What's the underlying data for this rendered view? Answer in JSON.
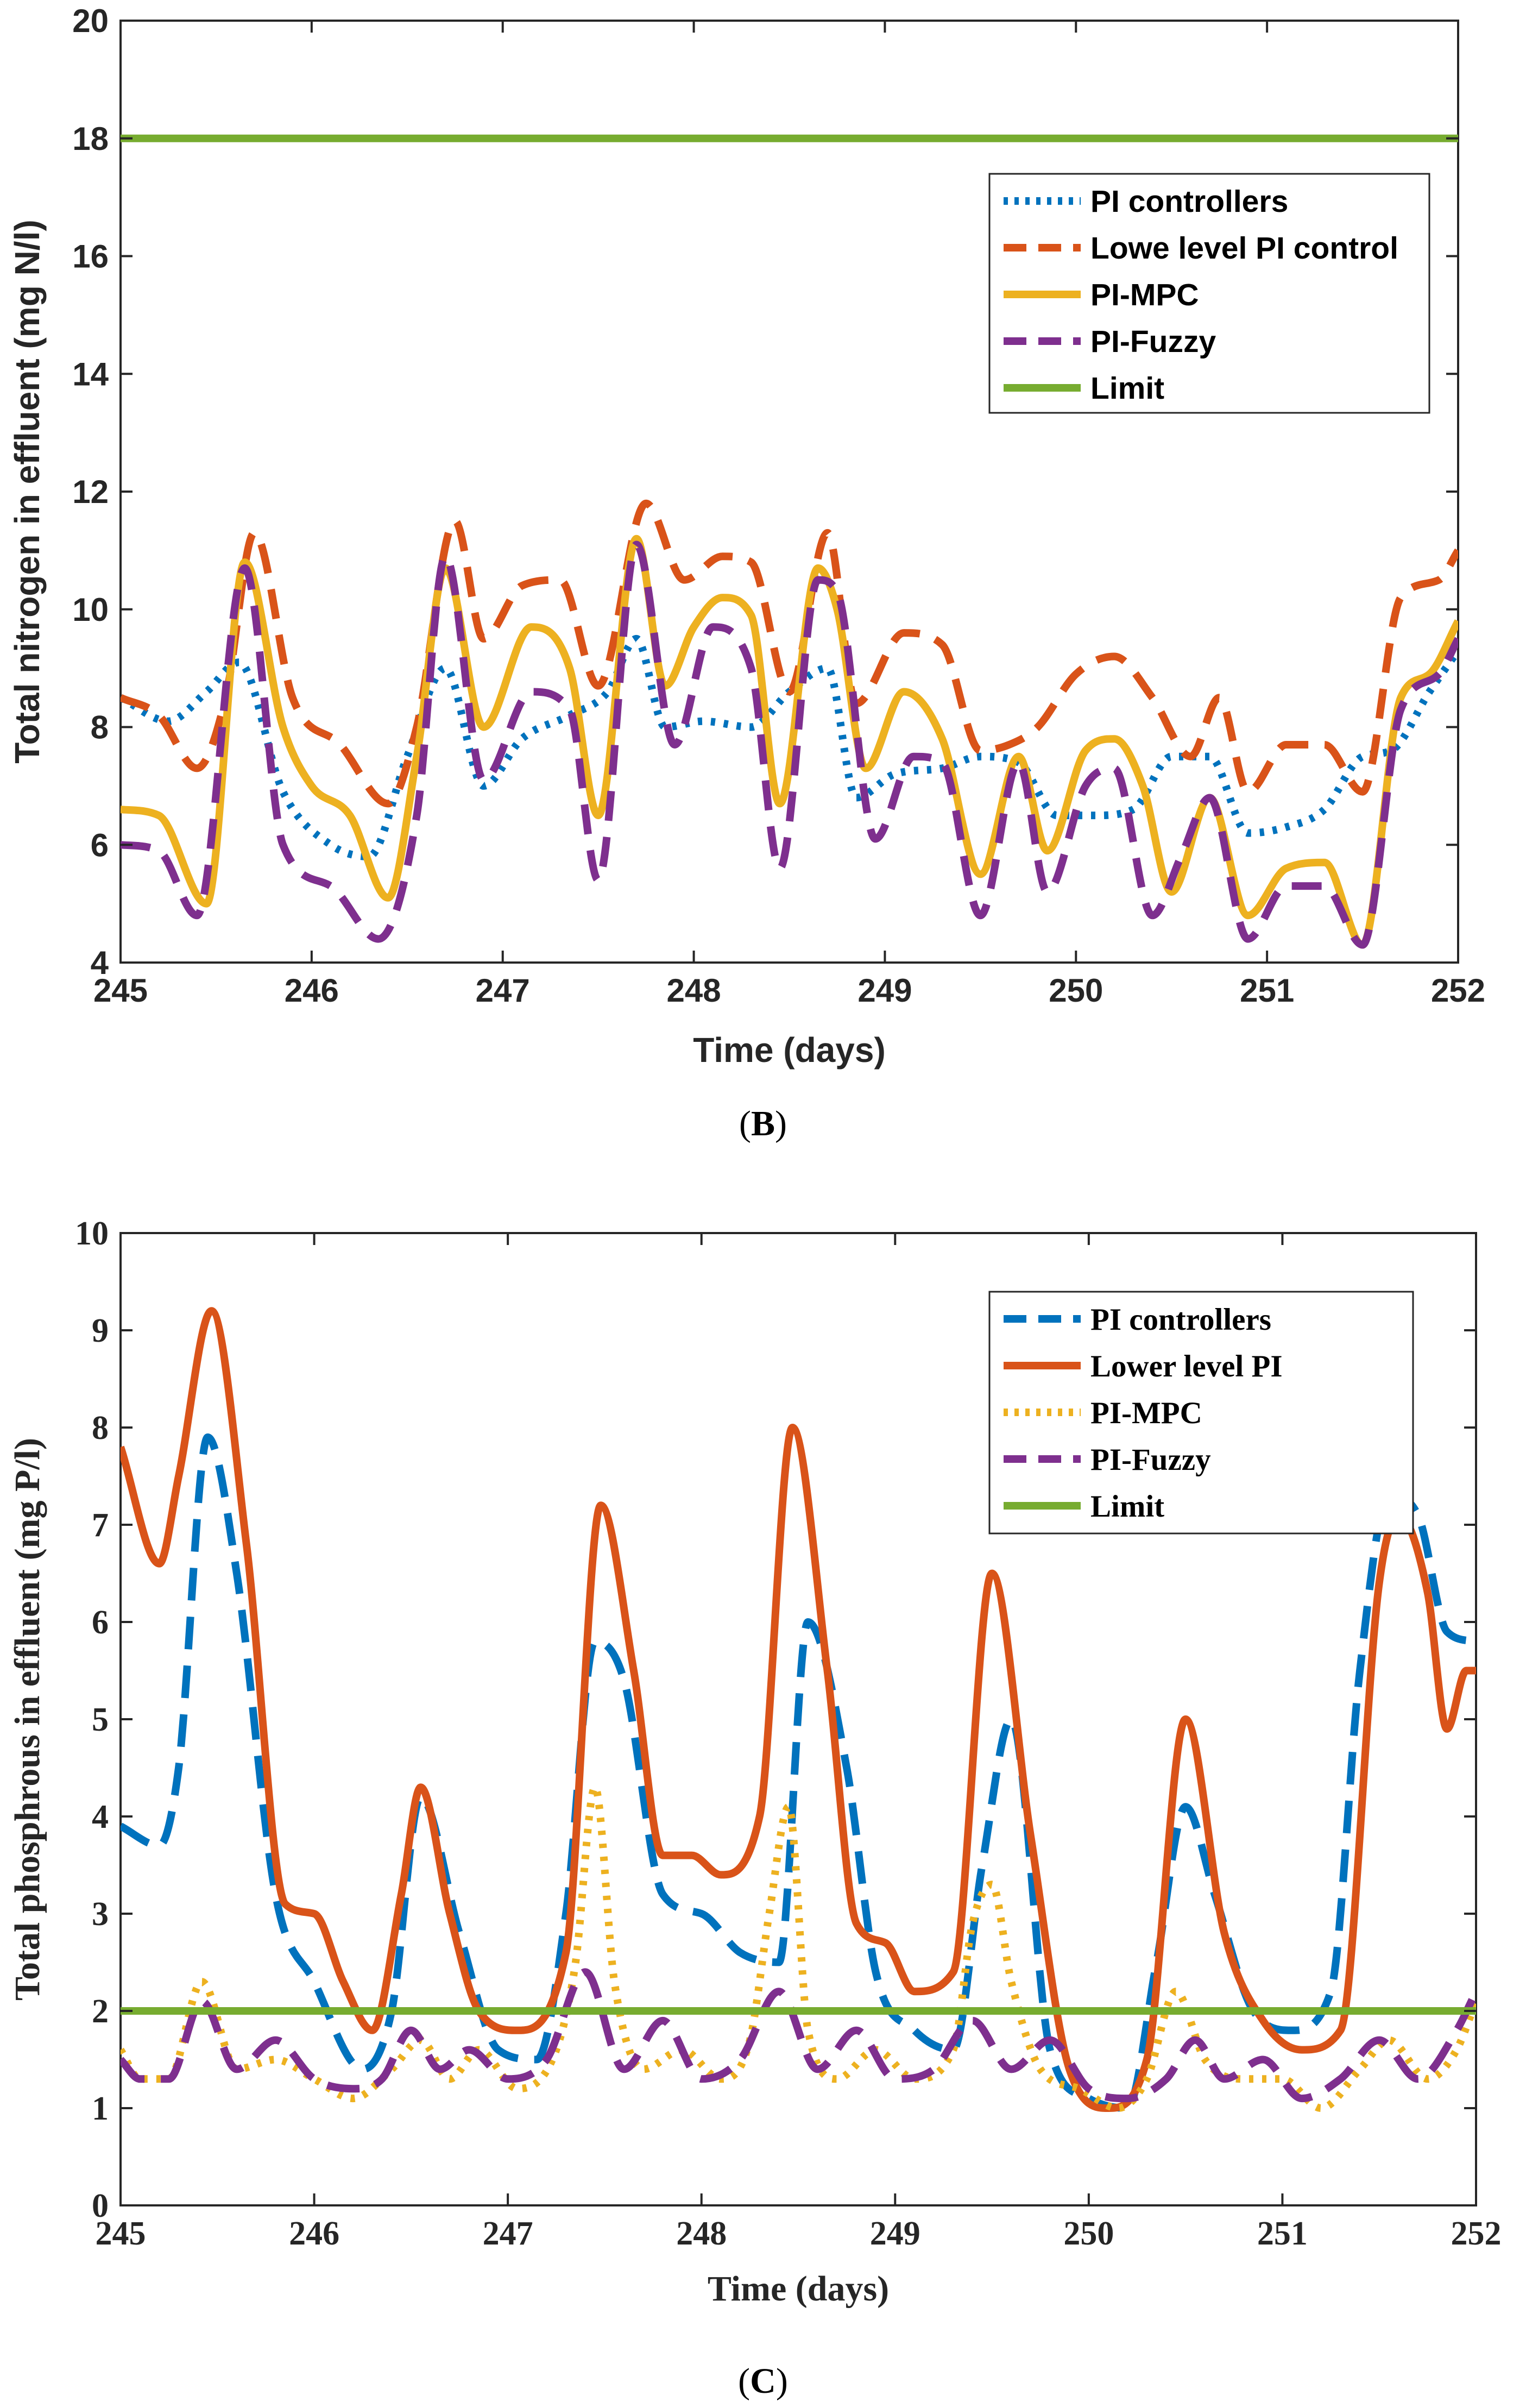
{
  "colors": {
    "blue": "#0072BD",
    "orange": "#D95319",
    "yellow": "#EDB120",
    "purple": "#7E2F8E",
    "green": "#77AC30"
  },
  "chart_data": [
    {
      "panel_label": "B",
      "type": "line",
      "xlabel": "Time (days)",
      "ylabel": "Total nitrogen in effluent (mg N/l)",
      "xlim": [
        245,
        252
      ],
      "ylim": [
        4,
        20
      ],
      "xticks": [
        245,
        246,
        247,
        248,
        249,
        250,
        251,
        252
      ],
      "yticks": [
        4,
        6,
        8,
        10,
        12,
        14,
        16,
        18,
        20
      ],
      "legend_position": "top-right",
      "series": [
        {
          "name": "PI controllers",
          "color": "#0072BD",
          "style": "dotted",
          "x": [
            245.0,
            245.25,
            245.45,
            245.62,
            245.85,
            246.1,
            246.3,
            246.5,
            246.7,
            246.9,
            247.1,
            247.35,
            247.55,
            247.7,
            247.85,
            248.05,
            248.3,
            248.5,
            248.7,
            248.85,
            249.05,
            249.3,
            249.5,
            249.7,
            249.9,
            250.1,
            250.3,
            250.5,
            250.7,
            250.9,
            251.1,
            251.3,
            251.5,
            251.65,
            251.85,
            252.0
          ],
          "y": [
            8.5,
            8.1,
            8.6,
            9.1,
            6.9,
            6.0,
            5.8,
            7.5,
            9.0,
            7.0,
            7.8,
            8.2,
            8.6,
            9.5,
            8.0,
            8.1,
            8.0,
            8.6,
            9.0,
            6.8,
            7.2,
            7.3,
            7.5,
            7.4,
            6.5,
            6.5,
            6.6,
            7.5,
            7.5,
            6.2,
            6.3,
            6.6,
            7.5,
            7.6,
            8.6,
            9.3
          ]
        },
        {
          "name": "Lowe level PI control",
          "color": "#D95319",
          "style": "dashed",
          "x": [
            245.0,
            245.2,
            245.4,
            245.55,
            245.7,
            245.9,
            246.15,
            246.4,
            246.55,
            246.75,
            246.9,
            247.1,
            247.3,
            247.5,
            247.75,
            247.95,
            248.15,
            248.3,
            248.5,
            248.7,
            248.85,
            249.1,
            249.3,
            249.5,
            249.65,
            249.8,
            250.0,
            250.2,
            250.4,
            250.6,
            250.75,
            250.9,
            251.1,
            251.3,
            251.5,
            251.7,
            251.9,
            252.0
          ],
          "y": [
            8.5,
            8.2,
            7.3,
            8.5,
            11.3,
            8.5,
            7.7,
            6.7,
            8.0,
            11.5,
            9.5,
            10.4,
            10.5,
            8.7,
            11.8,
            10.5,
            10.9,
            10.8,
            8.6,
            11.3,
            8.4,
            9.6,
            9.4,
            7.6,
            7.7,
            8.0,
            8.9,
            9.2,
            8.5,
            7.5,
            8.5,
            6.9,
            7.7,
            7.7,
            6.9,
            10.2,
            10.5,
            11.0
          ]
        },
        {
          "name": "PI-MPC",
          "color": "#EDB120",
          "style": "solid",
          "x": [
            245.0,
            245.2,
            245.45,
            245.65,
            245.85,
            246.0,
            246.2,
            246.4,
            246.55,
            246.7,
            246.9,
            247.15,
            247.35,
            247.5,
            247.7,
            247.85,
            248.0,
            248.15,
            248.3,
            248.45,
            248.65,
            248.75,
            248.9,
            249.1,
            249.3,
            249.5,
            249.7,
            249.85,
            250.05,
            250.2,
            250.35,
            250.5,
            250.7,
            250.9,
            251.1,
            251.3,
            251.5,
            251.7,
            251.85,
            252.0
          ],
          "y": [
            6.6,
            6.5,
            5.0,
            10.8,
            8.0,
            7.0,
            6.5,
            5.1,
            7.5,
            10.7,
            8.0,
            9.7,
            9.0,
            6.5,
            11.2,
            8.7,
            9.7,
            10.2,
            9.9,
            6.7,
            10.7,
            10.0,
            7.3,
            8.6,
            7.8,
            5.5,
            7.5,
            5.9,
            7.6,
            7.8,
            7.0,
            5.2,
            6.8,
            4.8,
            5.6,
            5.7,
            4.3,
            8.5,
            8.9,
            9.8
          ]
        },
        {
          "name": "PI-Fuzzy",
          "color": "#7E2F8E",
          "style": "dashed",
          "x": [
            245.0,
            245.2,
            245.4,
            245.65,
            245.85,
            246.1,
            246.35,
            246.55,
            246.7,
            246.9,
            247.15,
            247.35,
            247.5,
            247.7,
            247.9,
            248.1,
            248.3,
            248.45,
            248.65,
            248.75,
            248.95,
            249.15,
            249.3,
            249.5,
            249.7,
            249.85,
            250.05,
            250.2,
            250.4,
            250.55,
            250.7,
            250.9,
            251.1,
            251.3,
            251.5,
            251.7,
            251.9,
            252.0
          ],
          "y": [
            6.0,
            5.9,
            4.8,
            10.7,
            6.0,
            5.3,
            4.4,
            6.5,
            10.9,
            7.1,
            8.6,
            8.3,
            5.4,
            11.1,
            7.7,
            9.7,
            9.0,
            5.6,
            10.5,
            10.3,
            6.1,
            7.5,
            7.4,
            4.8,
            7.4,
            5.2,
            7.0,
            7.3,
            4.8,
            5.8,
            6.8,
            4.4,
            5.3,
            5.3,
            4.3,
            8.3,
            8.9,
            9.5
          ]
        },
        {
          "name": "Limit",
          "color": "#77AC30",
          "style": "solid",
          "x": [
            245,
            252
          ],
          "y": [
            18,
            18
          ]
        }
      ]
    },
    {
      "panel_label": "C",
      "type": "line",
      "xlabel": "Time (days)",
      "ylabel": "Total phosphrous in effluent (mg P/l)",
      "xlim": [
        245,
        252
      ],
      "ylim": [
        0,
        10
      ],
      "xticks": [
        245,
        246,
        247,
        248,
        249,
        250,
        251,
        252
      ],
      "yticks": [
        0,
        1,
        2,
        3,
        4,
        5,
        6,
        7,
        8,
        9,
        10
      ],
      "legend_position": "top-right",
      "series": [
        {
          "name": "PI controllers",
          "color": "#0072BD",
          "style": "dashed",
          "x": [
            245.0,
            245.2,
            245.3,
            245.45,
            245.6,
            245.8,
            246.0,
            246.25,
            246.4,
            246.55,
            246.75,
            246.95,
            247.15,
            247.3,
            247.45,
            247.6,
            247.8,
            248.0,
            248.2,
            248.4,
            248.55,
            248.75,
            248.9,
            249.1,
            249.3,
            249.45,
            249.6,
            249.8,
            250.0,
            250.2,
            250.35,
            250.5,
            250.65,
            250.85,
            251.05,
            251.25,
            251.4,
            251.55,
            251.7,
            251.85,
            252.0
          ],
          "y": [
            3.9,
            3.7,
            4.5,
            7.9,
            6.5,
            3.2,
            2.3,
            1.4,
            2.0,
            4.2,
            2.8,
            1.6,
            1.5,
            3.0,
            5.8,
            5.4,
            3.2,
            3.0,
            2.6,
            2.5,
            6.0,
            4.5,
            2.4,
            1.8,
            1.6,
            3.5,
            5.0,
            1.6,
            1.1,
            1.0,
            2.5,
            4.1,
            3.2,
            2.0,
            1.8,
            2.2,
            5.5,
            7.3,
            7.1,
            5.9,
            5.8
          ]
        },
        {
          "name": "Lower level PI",
          "color": "#D95319",
          "style": "solid",
          "x": [
            245.0,
            245.2,
            245.3,
            245.47,
            245.65,
            245.85,
            246.0,
            246.15,
            246.3,
            246.45,
            246.55,
            246.7,
            246.85,
            247.05,
            247.3,
            247.48,
            247.65,
            247.8,
            247.95,
            248.1,
            248.3,
            248.47,
            248.65,
            248.8,
            248.95,
            249.1,
            249.3,
            249.5,
            249.7,
            249.9,
            250.1,
            250.3,
            250.5,
            250.7,
            250.9,
            251.1,
            251.3,
            251.5,
            251.6,
            251.75,
            251.85,
            251.95,
            252.0
          ],
          "y": [
            7.8,
            6.6,
            7.5,
            9.2,
            6.8,
            3.1,
            3.0,
            2.3,
            1.8,
            3.2,
            4.3,
            3.0,
            2.0,
            1.8,
            2.6,
            7.2,
            5.5,
            3.6,
            3.6,
            3.4,
            4.0,
            8.0,
            5.5,
            2.9,
            2.7,
            2.2,
            2.4,
            6.5,
            3.8,
            1.4,
            1.0,
            1.5,
            5.0,
            2.8,
            1.9,
            1.6,
            1.8,
            6.4,
            7.1,
            6.3,
            4.9,
            5.5,
            5.5
          ]
        },
        {
          "name": "PI-MPC",
          "color": "#EDB120",
          "style": "dotted",
          "x": [
            245.0,
            245.1,
            245.25,
            245.42,
            245.6,
            245.8,
            246.0,
            246.2,
            246.4,
            246.55,
            246.7,
            246.85,
            247.05,
            247.25,
            247.35,
            247.45,
            247.55,
            247.7,
            247.9,
            248.1,
            248.25,
            248.35,
            248.45,
            248.55,
            248.7,
            248.9,
            249.1,
            249.3,
            249.4,
            249.5,
            249.6,
            249.75,
            249.95,
            250.15,
            250.3,
            250.45,
            250.6,
            250.8,
            251.0,
            251.2,
            251.4,
            251.55,
            251.75,
            251.9,
            252.0
          ],
          "y": [
            1.6,
            1.3,
            1.3,
            2.3,
            1.4,
            1.5,
            1.3,
            1.1,
            1.4,
            1.7,
            1.3,
            1.6,
            1.2,
            1.6,
            2.5,
            4.3,
            2.3,
            1.4,
            1.6,
            1.3,
            1.7,
            3.0,
            4.1,
            1.8,
            1.3,
            1.6,
            1.3,
            1.6,
            2.9,
            3.3,
            2.3,
            1.4,
            1.2,
            1.0,
            1.3,
            2.2,
            1.5,
            1.3,
            1.3,
            1.0,
            1.4,
            1.7,
            1.3,
            1.6,
            2.1
          ]
        },
        {
          "name": "PI-Fuzzy",
          "color": "#7E2F8E",
          "style": "dashed",
          "x": [
            245.0,
            245.1,
            245.25,
            245.42,
            245.6,
            245.8,
            246.0,
            246.2,
            246.35,
            246.5,
            246.65,
            246.8,
            247.0,
            247.2,
            247.4,
            247.6,
            247.8,
            248.0,
            248.2,
            248.4,
            248.6,
            248.8,
            249.0,
            249.2,
            249.4,
            249.6,
            249.8,
            250.0,
            250.2,
            250.4,
            250.55,
            250.7,
            250.9,
            251.1,
            251.3,
            251.5,
            251.7,
            251.9,
            252.0
          ],
          "y": [
            1.5,
            1.3,
            1.3,
            2.1,
            1.4,
            1.7,
            1.3,
            1.2,
            1.3,
            1.8,
            1.4,
            1.6,
            1.3,
            1.5,
            2.4,
            1.4,
            1.9,
            1.3,
            1.5,
            2.2,
            1.4,
            1.8,
            1.3,
            1.4,
            1.9,
            1.4,
            1.7,
            1.2,
            1.1,
            1.3,
            1.7,
            1.3,
            1.5,
            1.1,
            1.3,
            1.7,
            1.3,
            1.8,
            2.2
          ]
        },
        {
          "name": "Limit",
          "color": "#77AC30",
          "style": "solid",
          "x": [
            245,
            252
          ],
          "y": [
            2,
            2
          ]
        }
      ]
    }
  ]
}
